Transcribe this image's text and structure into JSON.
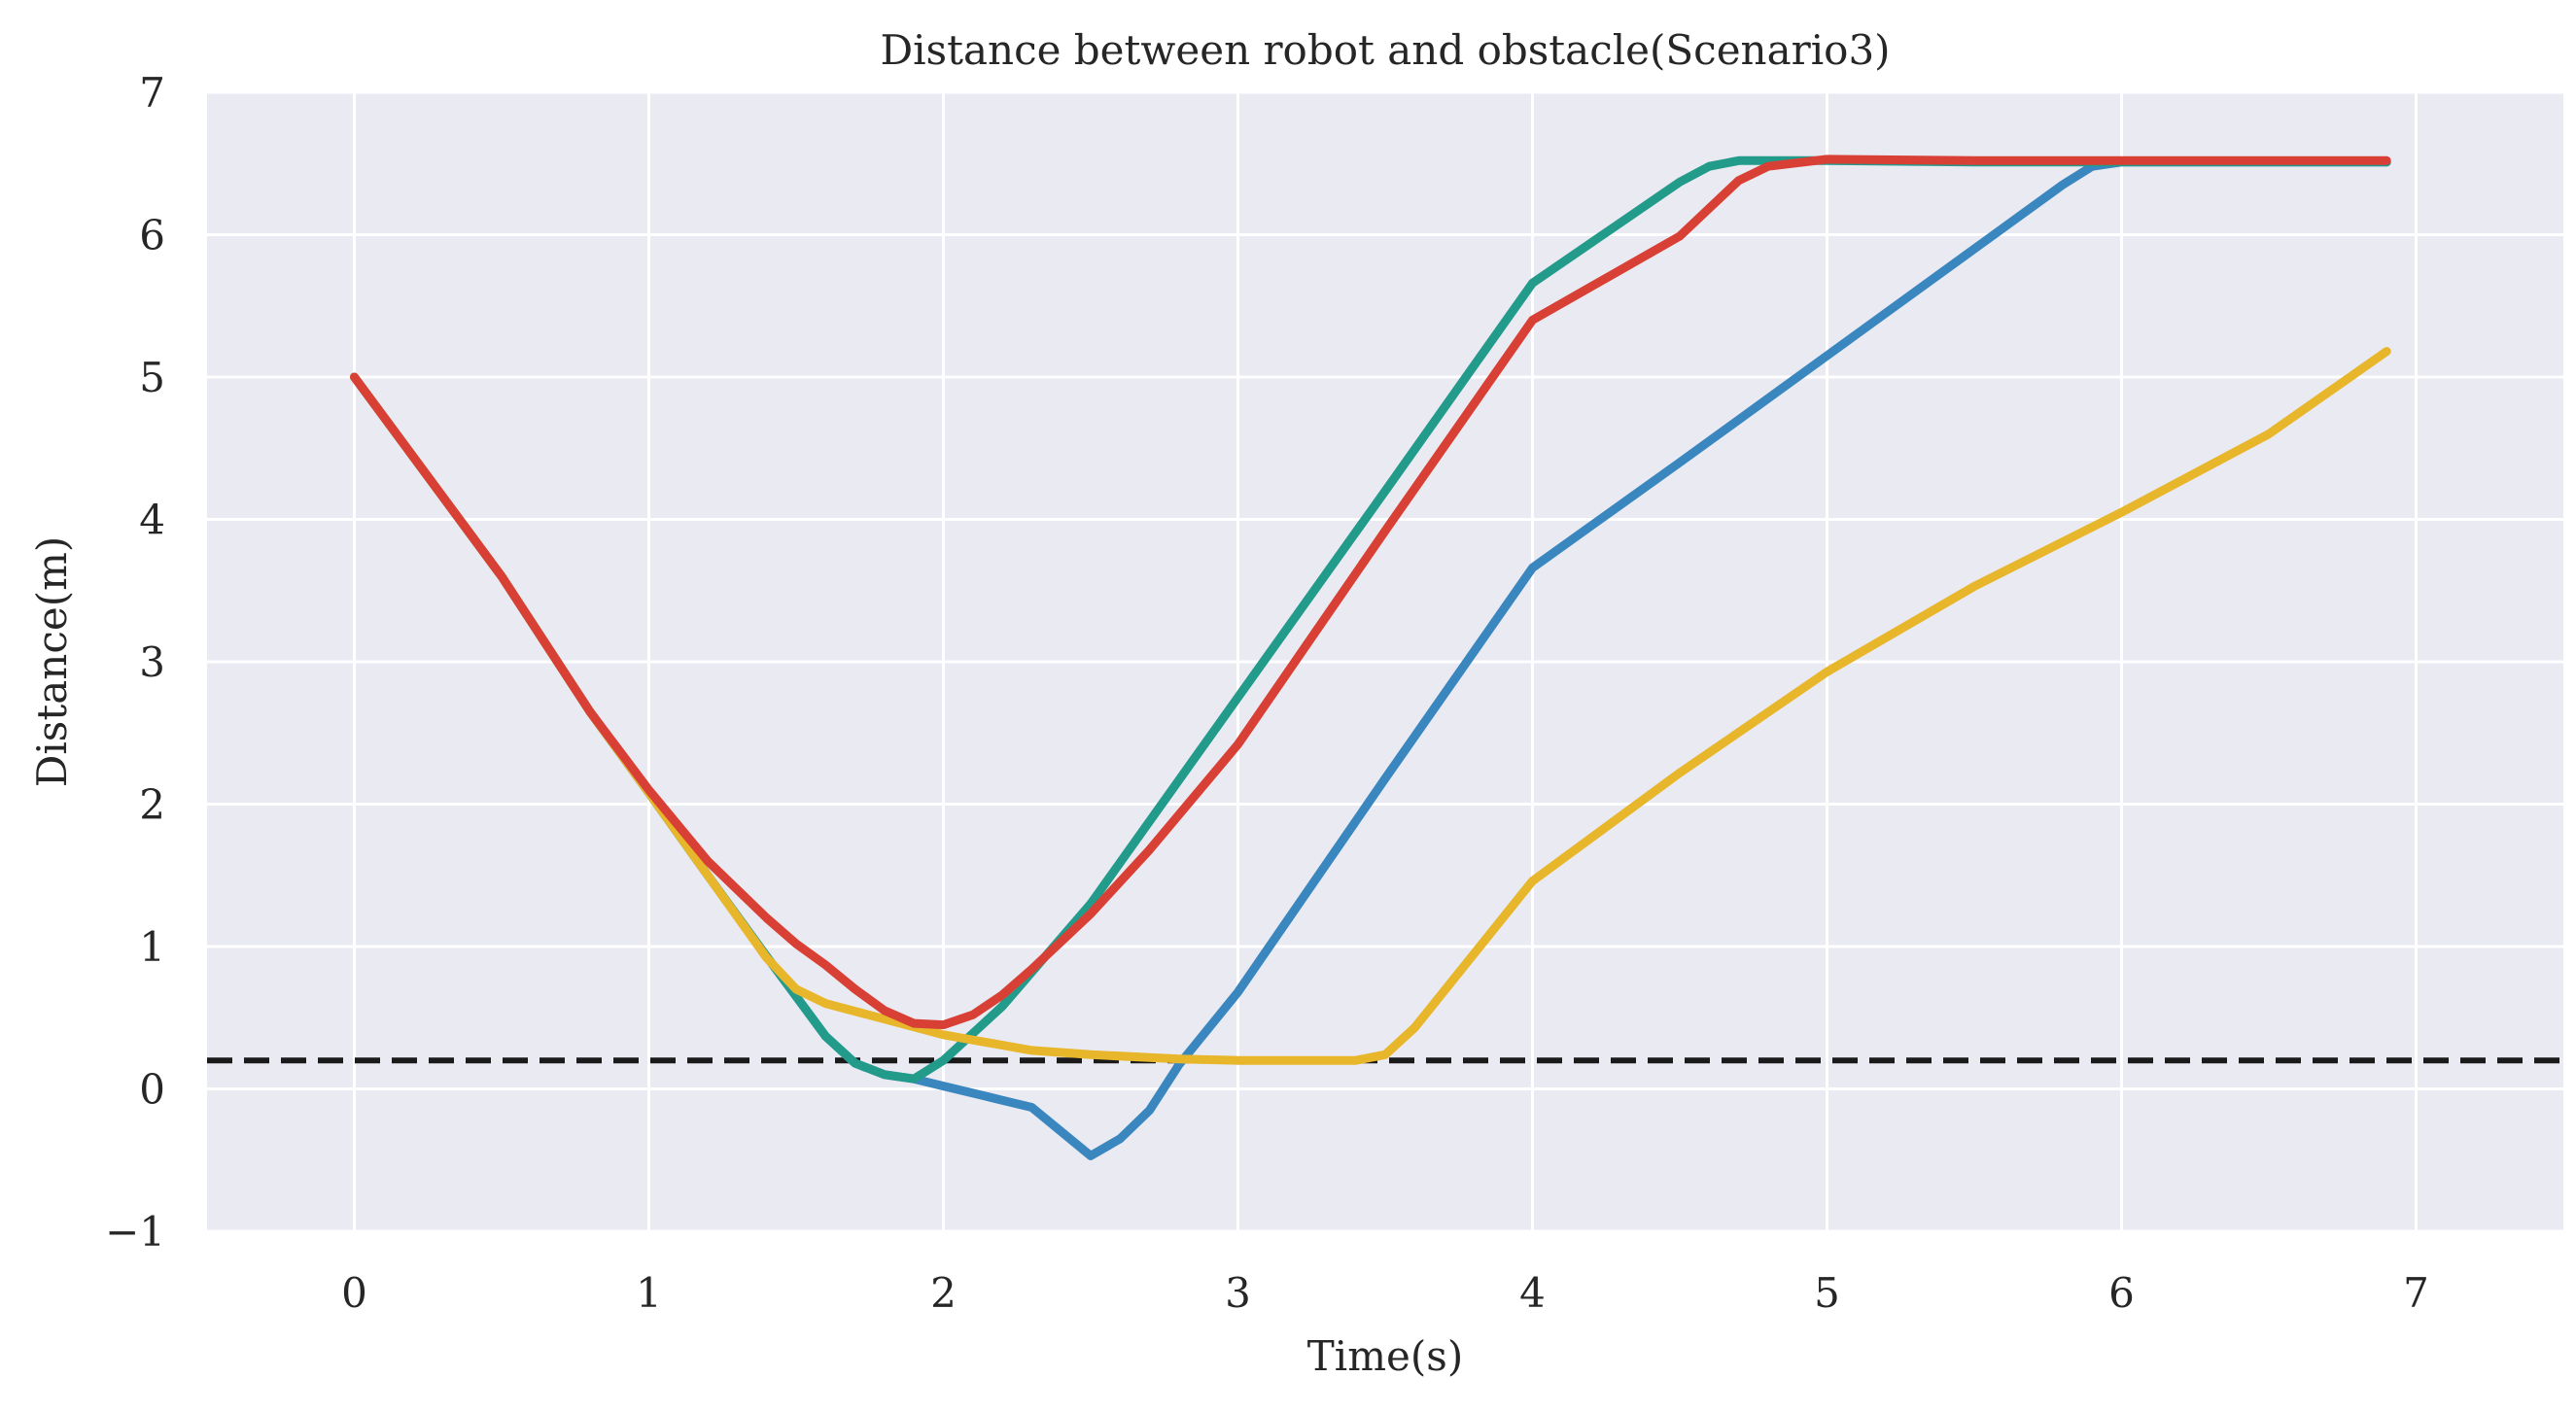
{
  "chart_data": {
    "type": "line",
    "title": "Distance between robot and obstacle(Scenario3)",
    "xlabel": "Time(s)",
    "ylabel": "Distance(m)",
    "xlim": [
      -0.5,
      7.5
    ],
    "ylim": [
      -1,
      7
    ],
    "xticks": [
      "0",
      "1",
      "2",
      "3",
      "4",
      "5",
      "6",
      "7"
    ],
    "yticks": [
      "−1",
      "0",
      "1",
      "2",
      "3",
      "4",
      "5",
      "6",
      "7"
    ],
    "grid": true,
    "background_color": "#eaeaf2",
    "reference_line": {
      "y": 0.2,
      "style": "dashed",
      "color": "#1a1a1a"
    },
    "series": [
      {
        "color": "#3a87c0",
        "points": [
          [
            0,
            5
          ],
          [
            0.5,
            3.6
          ],
          [
            0.8,
            2.65
          ],
          [
            1,
            2.08
          ],
          [
            1.2,
            1.5
          ],
          [
            1.4,
            0.93
          ],
          [
            1.6,
            0.37
          ],
          [
            1.7,
            0.18
          ],
          [
            1.8,
            0.1
          ],
          [
            1.9,
            0.07
          ],
          [
            2,
            0.02
          ],
          [
            2.1,
            -0.03
          ],
          [
            2.2,
            -0.08
          ],
          [
            2.3,
            -0.13
          ],
          [
            2.5,
            -0.47
          ],
          [
            2.6,
            -0.35
          ],
          [
            2.7,
            -0.15
          ],
          [
            2.8,
            0.17
          ],
          [
            3,
            0.68
          ],
          [
            3.5,
            2.18
          ],
          [
            4,
            3.66
          ],
          [
            4.5,
            4.4
          ],
          [
            5,
            5.15
          ],
          [
            5.5,
            5.9
          ],
          [
            5.8,
            6.35
          ],
          [
            5.9,
            6.48
          ],
          [
            6,
            6.51
          ],
          [
            6.5,
            6.51
          ],
          [
            6.9,
            6.51
          ]
        ]
      },
      {
        "color": "#239b8b",
        "points": [
          [
            0,
            5
          ],
          [
            0.5,
            3.6
          ],
          [
            0.8,
            2.65
          ],
          [
            1,
            2.08
          ],
          [
            1.2,
            1.5
          ],
          [
            1.4,
            0.93
          ],
          [
            1.6,
            0.37
          ],
          [
            1.7,
            0.18
          ],
          [
            1.8,
            0.1
          ],
          [
            1.9,
            0.07
          ],
          [
            2,
            0.2
          ],
          [
            2.2,
            0.58
          ],
          [
            2.5,
            1.3
          ],
          [
            3,
            2.75
          ],
          [
            3.5,
            4.2
          ],
          [
            4,
            5.66
          ],
          [
            4.5,
            6.37
          ],
          [
            4.6,
            6.48
          ],
          [
            4.7,
            6.52
          ],
          [
            5,
            6.52
          ],
          [
            5.5,
            6.51
          ],
          [
            6.9,
            6.51
          ]
        ]
      },
      {
        "color": "#e8b62a",
        "points": [
          [
            0,
            5
          ],
          [
            0.5,
            3.6
          ],
          [
            0.8,
            2.65
          ],
          [
            1,
            2.08
          ],
          [
            1.2,
            1.5
          ],
          [
            1.4,
            0.92
          ],
          [
            1.5,
            0.7
          ],
          [
            1.6,
            0.6
          ],
          [
            1.8,
            0.49
          ],
          [
            2,
            0.38
          ],
          [
            2.3,
            0.27
          ],
          [
            2.5,
            0.24
          ],
          [
            2.8,
            0.21
          ],
          [
            3,
            0.2
          ],
          [
            3.4,
            0.2
          ],
          [
            3.5,
            0.24
          ],
          [
            3.6,
            0.43
          ],
          [
            4,
            1.46
          ],
          [
            4.5,
            2.22
          ],
          [
            5,
            2.93
          ],
          [
            5.5,
            3.53
          ],
          [
            6,
            4.05
          ],
          [
            6.5,
            4.6
          ],
          [
            6.9,
            5.18
          ]
        ]
      },
      {
        "color": "#d94035",
        "points": [
          [
            0,
            5
          ],
          [
            0.5,
            3.6
          ],
          [
            0.8,
            2.65
          ],
          [
            1,
            2.1
          ],
          [
            1.2,
            1.6
          ],
          [
            1.4,
            1.2
          ],
          [
            1.5,
            1.02
          ],
          [
            1.6,
            0.87
          ],
          [
            1.7,
            0.7
          ],
          [
            1.8,
            0.55
          ],
          [
            1.9,
            0.46
          ],
          [
            2,
            0.45
          ],
          [
            2.1,
            0.52
          ],
          [
            2.2,
            0.66
          ],
          [
            2.3,
            0.84
          ],
          [
            2.5,
            1.23
          ],
          [
            2.7,
            1.68
          ],
          [
            3,
            2.42
          ],
          [
            3.5,
            3.92
          ],
          [
            4,
            5.4
          ],
          [
            4.5,
            5.99
          ],
          [
            4.7,
            6.38
          ],
          [
            4.8,
            6.48
          ],
          [
            5,
            6.53
          ],
          [
            5.5,
            6.52
          ],
          [
            6.9,
            6.52
          ]
        ]
      }
    ]
  }
}
